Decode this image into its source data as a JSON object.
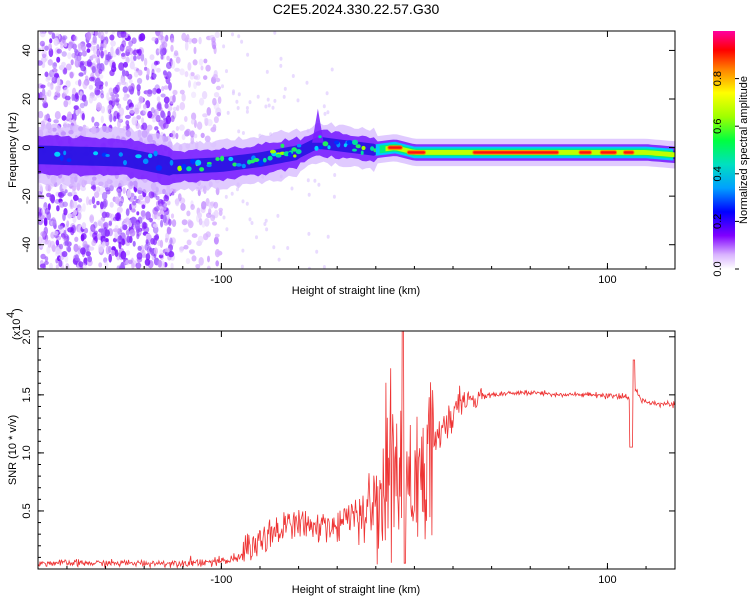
{
  "chart_data": [
    {
      "type": "heatmap",
      "title": "C2E5.2024.330.22.57.G30",
      "xlabel": "Height of straight line (km)",
      "ylabel": "Frequency (Hz)",
      "xlim": [
        -195,
        135
      ],
      "ylim": [
        -50,
        48
      ],
      "x_ticks": [
        -100,
        100
      ],
      "y_ticks": [
        -40,
        -20,
        0,
        20,
        40
      ],
      "colorbar": {
        "label": "Normalized spectral amplitude",
        "range": [
          0.0,
          1.0
        ],
        "ticks": [
          0.0,
          0.2,
          0.4,
          0.6,
          0.8
        ],
        "colors": [
          "#ffffff",
          "#c080ff",
          "#8000ff",
          "#0000ff",
          "#00c0ff",
          "#00ff80",
          "#80ff00",
          "#ffff00",
          "#ff8000",
          "#ff0000",
          "#ff00a0"
        ]
      },
      "ridge": {
        "x": [
          -195,
          -150,
          -125,
          -100,
          -80,
          -60,
          -50,
          -40,
          -30,
          -20,
          -10,
          0,
          20,
          40,
          60,
          80,
          100,
          120,
          135
        ],
        "y": [
          -3,
          -4,
          -8,
          -7,
          -5,
          -2,
          2,
          1,
          0,
          -1,
          0,
          -2,
          -2,
          -2,
          -2,
          -2,
          -2,
          -2,
          -3
        ]
      }
    },
    {
      "type": "line",
      "xlabel": "Height of straight line (km)",
      "ylabel": "SNR (10 * v/v)",
      "y_scale_label": "(x10",
      "y_scale_exp": "4",
      "xlim": [
        -195,
        135
      ],
      "ylim": [
        0,
        2.05
      ],
      "x_ticks": [
        -100,
        100
      ],
      "y_ticks": [
        0.5,
        1.0,
        1.5,
        2.0
      ],
      "series": [
        {
          "name": "SNR",
          "color": "#ee3333",
          "x": [
            -195,
            -150,
            -125,
            -115,
            -100,
            -90,
            -80,
            -70,
            -60,
            -50,
            -40,
            -30,
            -20,
            -15,
            -10,
            -5,
            0,
            5,
            10,
            15,
            20,
            25,
            30,
            40,
            50,
            60,
            70,
            80,
            90,
            100,
            108,
            112,
            114,
            118,
            125,
            135
          ],
          "y": [
            0.05,
            0.05,
            0.05,
            0.06,
            0.06,
            0.1,
            0.2,
            0.3,
            0.35,
            0.3,
            0.3,
            0.45,
            0.6,
            0.75,
            0.8,
            0.85,
            0.9,
            0.95,
            1.05,
            1.2,
            1.35,
            1.42,
            1.47,
            1.5,
            1.51,
            1.52,
            1.51,
            1.5,
            1.5,
            1.49,
            1.48,
            1.47,
            1.55,
            1.45,
            1.43,
            1.42
          ]
        }
      ]
    }
  ]
}
